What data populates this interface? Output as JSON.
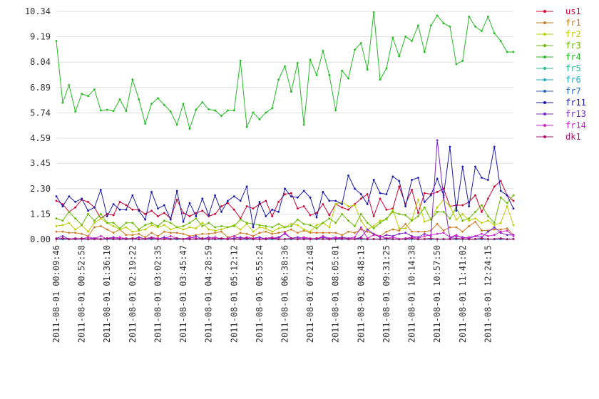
{
  "chart_data": {
    "type": "line",
    "grid": "horizontal",
    "legend_position": "right",
    "ylim": [
      0,
      10.34
    ],
    "y_ticks": [
      "0.00",
      "1.15",
      "2.30",
      "3.45",
      "4.59",
      "5.74",
      "6.89",
      "8.04",
      "9.19",
      "10.34"
    ],
    "x_tick_labels": [
      "2011-08-01 00:09:46",
      "2011-08-01 00:52:58",
      "2011-08-01 01:36:10",
      "2011-08-01 02:19:22",
      "2011-08-01 03:02:35",
      "2011-08-01 03:45:47",
      "2011-08-01 04:28:59",
      "2011-08-01 05:12:12",
      "2011-08-01 05:55:24",
      "2011-08-01 06:38:36",
      "2011-08-01 07:21:48",
      "2011-08-01 08:05:01",
      "2011-08-01 08:48:13",
      "2011-08-01 09:31:25",
      "2011-08-01 10:14:38",
      "2011-08-01 10:57:50",
      "2011-08-01 11:41:02",
      "2011-08-01 12:24:15"
    ],
    "point_count": 73,
    "series": [
      {
        "name": "us1",
        "color": "#cc0033",
        "values": [
          1.75,
          1.6,
          1.25,
          1.45,
          1.8,
          1.7,
          1.45,
          0.95,
          1.15,
          1.1,
          1.7,
          1.55,
          1.35,
          1.35,
          1.15,
          1.3,
          1.05,
          1.2,
          0.95,
          1.8,
          1.2,
          1.05,
          1.2,
          1.3,
          1.05,
          1.15,
          1.5,
          1.65,
          1.35,
          0.95,
          1.5,
          1.4,
          1.6,
          1.75,
          1.05,
          1.7,
          2.05,
          2.1,
          1.4,
          1.5,
          1.1,
          1.2,
          1.6,
          1.1,
          1.6,
          1.45,
          1.35,
          1.6,
          1.85,
          2.05,
          1.05,
          1.85,
          1.35,
          1.4,
          2.4,
          1.6,
          2.25,
          1.2,
          2.1,
          2.05,
          2.15,
          2.3,
          1.5,
          1.55,
          1.55,
          1.7,
          2.0,
          1.25,
          1.85,
          2.4,
          2.65,
          2.0,
          1.75
        ]
      },
      {
        "name": "fr1",
        "color": "#cc7722",
        "values": [
          0.35,
          0.35,
          0.3,
          0.3,
          0.25,
          0.15,
          0.55,
          0.6,
          0.45,
          0.3,
          0.45,
          0.2,
          0.2,
          0.25,
          0.1,
          0.3,
          0.15,
          0.35,
          0.3,
          0.3,
          0.25,
          0.15,
          0.2,
          0.25,
          0.25,
          0.3,
          0.35,
          0.1,
          0.15,
          0.3,
          0.25,
          0.15,
          0.3,
          0.35,
          0.25,
          0.3,
          0.35,
          0.45,
          0.3,
          0.4,
          0.3,
          0.3,
          0.3,
          0.3,
          0.3,
          0.2,
          0.35,
          0.3,
          0.45,
          0.35,
          0.25,
          0.15,
          0.35,
          0.45,
          0.4,
          0.7,
          0.35,
          0.35,
          0.35,
          0.4,
          0.7,
          0.4,
          0.55,
          0.55,
          0.35,
          0.6,
          0.8,
          0.4,
          0.4,
          0.45,
          0.45,
          0.5,
          0.2
        ]
      },
      {
        "name": "fr2",
        "color": "#bbcc00",
        "values": [
          0.6,
          0.65,
          0.75,
          0.45,
          0.65,
          0.35,
          0.75,
          0.95,
          0.75,
          0.6,
          0.45,
          0.55,
          0.35,
          0.4,
          0.45,
          0.65,
          0.55,
          0.65,
          0.45,
          0.55,
          0.45,
          0.55,
          0.5,
          0.75,
          0.45,
          0.4,
          0.45,
          0.55,
          0.65,
          0.45,
          0.7,
          0.35,
          0.55,
          0.5,
          0.35,
          0.5,
          0.55,
          0.7,
          0.65,
          0.45,
          0.35,
          0.65,
          0.75,
          0.55,
          1.6,
          1.7,
          1.5,
          1.55,
          0.85,
          0.45,
          0.6,
          0.85,
          0.9,
          1.35,
          0.5,
          0.5,
          0.9,
          1.8,
          0.8,
          0.9,
          1.45,
          1.8,
          1.5,
          0.9,
          1.15,
          0.85,
          0.95,
          0.75,
          0.85,
          0.65,
          0.75,
          1.5,
          0.65
        ]
      },
      {
        "name": "fr3",
        "color": "#66bb00",
        "values": [
          0.95,
          0.85,
          1.25,
          0.95,
          0.65,
          1.15,
          0.85,
          1.15,
          0.75,
          0.75,
          0.5,
          0.75,
          0.75,
          0.45,
          0.65,
          0.75,
          0.6,
          0.85,
          0.75,
          0.55,
          0.6,
          0.75,
          0.95,
          0.6,
          0.75,
          0.55,
          0.6,
          0.55,
          0.6,
          0.9,
          0.75,
          0.7,
          0.65,
          0.6,
          0.55,
          0.7,
          0.55,
          0.6,
          0.9,
          0.7,
          0.65,
          0.5,
          0.75,
          0.95,
          0.75,
          1.15,
          0.85,
          0.6,
          1.15,
          0.75,
          0.5,
          0.75,
          0.95,
          1.25,
          1.15,
          1.1,
          0.85,
          1.05,
          1.45,
          0.9,
          1.25,
          1.25,
          0.95,
          1.45,
          0.85,
          0.95,
          1.25,
          1.55,
          1.05,
          0.75,
          1.9,
          1.65,
          2.0
        ]
      },
      {
        "name": "fr4",
        "color": "#22bb22",
        "values": [
          9.0,
          6.2,
          7.0,
          5.8,
          6.6,
          6.5,
          6.8,
          5.85,
          5.88,
          5.82,
          6.35,
          5.82,
          7.25,
          6.35,
          5.25,
          6.15,
          6.4,
          6.1,
          5.8,
          5.2,
          6.15,
          5.02,
          5.88,
          6.22,
          5.9,
          5.85,
          5.6,
          5.85,
          5.85,
          8.1,
          5.1,
          5.75,
          5.45,
          5.75,
          5.95,
          7.25,
          7.85,
          6.7,
          8.0,
          5.2,
          8.15,
          7.45,
          8.55,
          7.45,
          5.85,
          7.65,
          7.3,
          8.6,
          8.9,
          7.7,
          10.3,
          7.25,
          7.75,
          9.15,
          8.3,
          9.2,
          9.0,
          9.7,
          8.5,
          9.7,
          10.15,
          9.8,
          9.65,
          7.95,
          8.1,
          10.1,
          9.65,
          9.45,
          10.1,
          9.35,
          9.0,
          8.5,
          8.5
        ]
      },
      {
        "name": "fr5",
        "color": "#22bb88",
        "values": [
          0.02,
          0.02,
          0.01,
          0.02,
          0.01,
          0.02,
          0.03,
          0.02,
          0.01,
          0.02,
          0.01,
          0.02,
          0.03,
          0.01,
          0.02,
          0.02,
          0.01,
          0.02,
          0.03,
          0.01,
          0.02,
          0.01,
          0.02,
          0.02,
          0.01,
          0.02,
          0.01,
          0.02,
          0.03,
          0.01,
          0.02,
          0.01,
          0.02,
          0.01,
          0.02,
          0.03,
          0.01,
          0.02,
          0.01,
          0.02,
          0.01,
          0.02,
          0.03,
          0.01,
          0.02,
          0.01,
          0.02,
          0.01,
          0.02,
          0.03,
          0.01,
          0.02,
          0.01,
          0.02,
          0.01,
          0.02,
          0.03,
          0.01,
          0.02,
          0.01,
          0.02,
          0.01,
          0.02,
          0.03,
          0.01,
          0.02,
          0.01,
          0.02,
          0.01,
          0.02,
          0.03,
          0.01,
          0.02
        ]
      },
      {
        "name": "fr6",
        "color": "#22aacc",
        "values": [
          0.01,
          0.01,
          0.01,
          0.02,
          0.01,
          0.01,
          0.01,
          0.02,
          0.01,
          0.01,
          0.01,
          0.01,
          0.02,
          0.01,
          0.01,
          0.01,
          0.01,
          0.02,
          0.01,
          0.01,
          0.01,
          0.01,
          0.02,
          0.01,
          0.01,
          0.01,
          0.01,
          0.02,
          0.01,
          0.01,
          0.01,
          0.01,
          0.02,
          0.01,
          0.01,
          0.01,
          0.01,
          0.02,
          0.01,
          0.01,
          0.01,
          0.01,
          0.02,
          0.01,
          0.01,
          0.01,
          0.01,
          0.02,
          0.01,
          0.01,
          0.01,
          0.01,
          0.02,
          0.01,
          0.01,
          0.01,
          0.01,
          0.02,
          0.01,
          0.01,
          0.01,
          0.01,
          0.02,
          0.01,
          0.01,
          0.01,
          0.01,
          0.02,
          0.01,
          0.01,
          0.01,
          0.01,
          0.02
        ]
      },
      {
        "name": "fr7",
        "color": "#2266bb",
        "values": [
          0.02,
          0.01,
          0.02,
          0.01,
          0.02,
          0.01,
          0.02,
          0.01,
          0.02,
          0.01,
          0.02,
          0.01,
          0.02,
          0.01,
          0.02,
          0.01,
          0.02,
          0.01,
          0.02,
          0.01,
          0.02,
          0.01,
          0.02,
          0.01,
          0.02,
          0.01,
          0.02,
          0.01,
          0.02,
          0.01,
          0.02,
          0.01,
          0.02,
          0.01,
          0.02,
          0.01,
          0.02,
          0.01,
          0.02,
          0.01,
          0.02,
          0.01,
          0.02,
          0.01,
          0.02,
          0.01,
          0.02,
          0.01,
          0.02,
          0.01,
          0.02,
          0.01,
          0.02,
          0.01,
          0.02,
          0.01,
          0.02,
          0.01,
          0.02,
          0.01,
          0.02,
          0.01,
          0.02,
          0.01,
          0.02,
          0.01,
          0.02,
          0.01,
          0.02,
          0.01,
          0.02,
          0.01,
          0.02
        ]
      },
      {
        "name": "fr11",
        "color": "#1a1aaa",
        "values": [
          1.95,
          1.5,
          1.95,
          1.7,
          1.85,
          1.3,
          1.45,
          2.25,
          1.05,
          1.6,
          1.35,
          1.35,
          2.0,
          1.3,
          0.9,
          2.15,
          1.4,
          1.55,
          0.9,
          2.2,
          0.8,
          1.65,
          1.05,
          1.85,
          1.1,
          2.0,
          1.25,
          1.75,
          1.95,
          1.75,
          2.4,
          0.55,
          1.7,
          1.05,
          1.35,
          1.25,
          2.3,
          1.95,
          1.9,
          2.2,
          1.9,
          1.0,
          2.15,
          1.75,
          1.75,
          1.6,
          2.9,
          2.3,
          2.05,
          1.6,
          2.7,
          2.1,
          2.05,
          2.85,
          2.65,
          1.5,
          2.7,
          2.8,
          1.7,
          2.0,
          2.75,
          2.0,
          4.2,
          1.3,
          3.3,
          1.5,
          3.3,
          2.8,
          2.7,
          4.2,
          2.2,
          2.0,
          1.4
        ]
      },
      {
        "name": "fr13",
        "color": "#7722cc",
        "values": [
          0.05,
          0.15,
          0.02,
          0.05,
          0.02,
          0.02,
          0.05,
          0.02,
          0.05,
          0.1,
          0.02,
          0.05,
          0.02,
          0.1,
          0.02,
          0.05,
          0.02,
          0.1,
          0.02,
          0.05,
          0.02,
          0.05,
          0.15,
          0.02,
          0.1,
          0.02,
          0.05,
          0.02,
          0.05,
          0.1,
          0.02,
          0.05,
          0.1,
          0.02,
          0.05,
          0.1,
          0.25,
          0.05,
          0.1,
          0.05,
          0.02,
          0.05,
          0.1,
          0.02,
          0.05,
          0.1,
          0.05,
          0.02,
          0.1,
          0.45,
          0.25,
          0.1,
          0.2,
          0.15,
          0.25,
          0.3,
          0.15,
          0.1,
          0.25,
          0.15,
          4.5,
          1.9,
          0.05,
          0.15,
          0.1,
          0.05,
          0.15,
          0.1,
          0.35,
          0.55,
          0.3,
          0.2,
          0.2
        ]
      },
      {
        "name": "fr14",
        "color": "#cc22cc",
        "values": [
          0.02,
          0.05,
          0.02,
          0.03,
          0.02,
          0.1,
          0.05,
          0.15,
          0.02,
          0.05,
          0.1,
          0.02,
          0.05,
          0.02,
          0.03,
          0.1,
          0.05,
          0.02,
          0.15,
          0.05,
          0.02,
          0.1,
          0.05,
          0.02,
          0.05,
          0.1,
          0.02,
          0.05,
          0.15,
          0.02,
          0.1,
          0.05,
          0.02,
          0.05,
          0.1,
          0.02,
          0.3,
          0.05,
          0.02,
          0.1,
          0.05,
          0.02,
          0.15,
          0.05,
          0.1,
          0.02,
          0.05,
          0.1,
          0.55,
          0.05,
          0.2,
          0.15,
          0.05,
          0.1,
          0.02,
          0.05,
          0.1,
          0.05,
          0.15,
          0.2,
          0.25,
          0.3,
          0.1,
          0.2,
          0.05,
          0.1,
          0.15,
          0.25,
          0.15,
          0.2,
          0.35,
          0.4,
          0.15
        ]
      },
      {
        "name": "dk1",
        "color": "#aa1166",
        "values": [
          0.02,
          0.05,
          0.01,
          0.02,
          0.05,
          0.01,
          0.02,
          0.01,
          0.05,
          0.02,
          0.01,
          0.02,
          0.05,
          0.01,
          0.02,
          0.05,
          0.01,
          0.02,
          0.01,
          0.05,
          0.02,
          0.01,
          0.02,
          0.05,
          0.01,
          0.02,
          0.05,
          0.01,
          0.02,
          0.01,
          0.05,
          0.02,
          0.01,
          0.02,
          0.05,
          0.01,
          0.02,
          0.05,
          0.01,
          0.02,
          0.01,
          0.05,
          0.02,
          0.01,
          0.02,
          0.05,
          0.01,
          0.02,
          0.05,
          0.01,
          0.02,
          0.01,
          0.05,
          0.02,
          0.01,
          0.02,
          0.05,
          0.01,
          0.02,
          0.05,
          0.01,
          0.02,
          0.01,
          0.05,
          0.02,
          0.01,
          0.02,
          0.05,
          0.01,
          0.02,
          0.05,
          0.01,
          0.02
        ]
      }
    ]
  }
}
